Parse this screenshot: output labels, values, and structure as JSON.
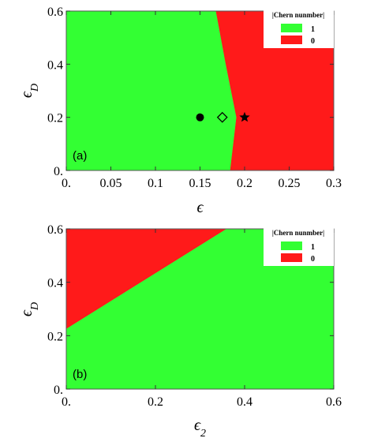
{
  "colors": {
    "green": "#33ff33",
    "red": "#ff1a1a",
    "frame": "#555555",
    "legend_bg": "#ffffff"
  },
  "chart_data": [
    {
      "type": "heatmap",
      "panel_label": "(a)",
      "xlabel": "ϵ",
      "ylabel": "ϵ_D",
      "xlim": [
        0,
        0.3
      ],
      "ylim": [
        0,
        0.6
      ],
      "xticks": [
        0,
        0.05,
        0.1,
        0.15,
        0.2,
        0.25,
        0.3
      ],
      "xtick_labels": [
        "0.",
        "0.05",
        "0.1",
        "0.15",
        "0.2",
        "0.25",
        "0.3"
      ],
      "yticks": [
        0,
        0.2,
        0.4,
        0.6
      ],
      "ytick_labels": [
        "0.",
        "0.2",
        "0.4",
        "0.6"
      ],
      "legend": {
        "title": "|Chern nunmber|",
        "entries": [
          {
            "label": "1",
            "color": "green"
          },
          {
            "label": "0",
            "color": "red"
          }
        ],
        "placement": "top-right"
      },
      "regions": [
        {
          "value": 1,
          "color": "green",
          "polygon": [
            [
              0,
              0
            ],
            [
              0.184,
              0
            ],
            [
              0.191,
              0.2
            ],
            [
              0.179,
              0.4
            ],
            [
              0.168,
              0.6
            ],
            [
              0,
              0.6
            ]
          ]
        },
        {
          "value": 0,
          "color": "red",
          "polygon": [
            [
              0.184,
              0
            ],
            [
              0.3,
              0
            ],
            [
              0.3,
              0.6
            ],
            [
              0.168,
              0.6
            ],
            [
              0.179,
              0.4
            ],
            [
              0.191,
              0.2
            ]
          ]
        }
      ],
      "markers": [
        {
          "shape": "circle",
          "x": 0.15,
          "y": 0.2
        },
        {
          "shape": "diamond",
          "x": 0.175,
          "y": 0.2
        },
        {
          "shape": "star",
          "x": 0.2,
          "y": 0.2
        }
      ]
    },
    {
      "type": "heatmap",
      "panel_label": "(b)",
      "xlabel": "ϵ_2",
      "ylabel": "ϵ_D",
      "xlim": [
        0,
        0.6
      ],
      "ylim": [
        0,
        0.6
      ],
      "xticks": [
        0,
        0.2,
        0.4,
        0.6
      ],
      "xtick_labels": [
        "0.",
        "0.2",
        "0.4",
        "0.6"
      ],
      "yticks": [
        0,
        0.2,
        0.4,
        0.6
      ],
      "ytick_labels": [
        "0.",
        "0.2",
        "0.4",
        "0.6"
      ],
      "legend": {
        "title": "|Chern nunmber|",
        "entries": [
          {
            "label": "1",
            "color": "green"
          },
          {
            "label": "0",
            "color": "red"
          }
        ],
        "placement": "top-right"
      },
      "regions": [
        {
          "value": 0,
          "color": "red",
          "polygon": [
            [
              0,
              0.225
            ],
            [
              0.36,
              0.6
            ],
            [
              0,
              0.6
            ]
          ]
        },
        {
          "value": 1,
          "color": "green",
          "polygon": [
            [
              0,
              0
            ],
            [
              0.6,
              0
            ],
            [
              0.6,
              0.6
            ],
            [
              0.36,
              0.6
            ],
            [
              0,
              0.225
            ]
          ]
        }
      ],
      "markers": []
    }
  ]
}
